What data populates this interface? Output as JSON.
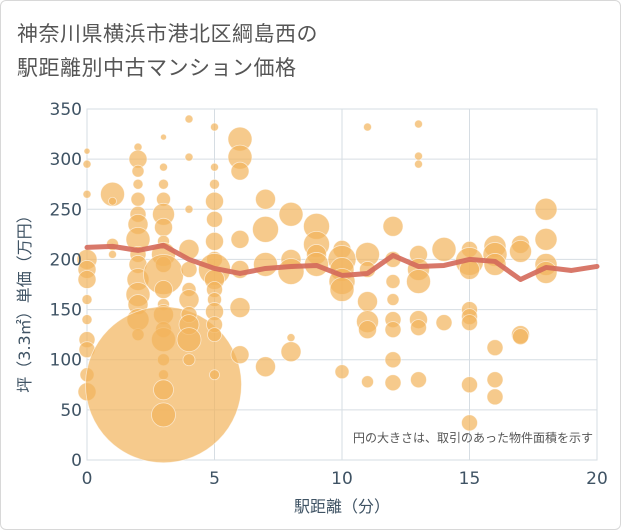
{
  "title_line1": "神奈川県横浜市港北区綱島西の",
  "title_line2": "駅距離別中古マンション価格",
  "chart_data": {
    "type": "scatter",
    "xlabel": "駅距離（分）",
    "ylabel": "坪（3.3㎡）単価（万円）",
    "xlim": [
      0,
      20
    ],
    "ylim": [
      0,
      350
    ],
    "xticks": [
      0,
      5,
      10,
      15,
      20
    ],
    "yticks": [
      0,
      50,
      100,
      150,
      200,
      250,
      300,
      350
    ],
    "grid": true,
    "annotation": "円の大きさは、取引のあった物件面積を示す",
    "bubble_color": "#f2b45b",
    "line_color": "#d4695a",
    "bubbles": [
      {
        "x": 0,
        "y": 308,
        "s": 3
      },
      {
        "x": 0,
        "y": 295,
        "s": 4
      },
      {
        "x": 0,
        "y": 265,
        "s": 4
      },
      {
        "x": 0,
        "y": 200,
        "s": 10
      },
      {
        "x": 0,
        "y": 190,
        "s": 9
      },
      {
        "x": 0,
        "y": 180,
        "s": 9
      },
      {
        "x": 0,
        "y": 160,
        "s": 5
      },
      {
        "x": 0,
        "y": 140,
        "s": 5
      },
      {
        "x": 0,
        "y": 120,
        "s": 8
      },
      {
        "x": 0,
        "y": 110,
        "s": 8
      },
      {
        "x": 0,
        "y": 85,
        "s": 7
      },
      {
        "x": 0,
        "y": 68,
        "s": 9
      },
      {
        "x": 1,
        "y": 265,
        "s": 12
      },
      {
        "x": 1,
        "y": 258,
        "s": 4
      },
      {
        "x": 1,
        "y": 215,
        "s": 6
      },
      {
        "x": 1,
        "y": 205,
        "s": 4
      },
      {
        "x": 2,
        "y": 312,
        "s": 4
      },
      {
        "x": 2,
        "y": 300,
        "s": 9
      },
      {
        "x": 2,
        "y": 288,
        "s": 6
      },
      {
        "x": 2,
        "y": 275,
        "s": 5
      },
      {
        "x": 2,
        "y": 260,
        "s": 7
      },
      {
        "x": 2,
        "y": 245,
        "s": 8
      },
      {
        "x": 2,
        "y": 235,
        "s": 10
      },
      {
        "x": 2,
        "y": 220,
        "s": 12
      },
      {
        "x": 2,
        "y": 205,
        "s": 8
      },
      {
        "x": 2,
        "y": 195,
        "s": 9
      },
      {
        "x": 2,
        "y": 180,
        "s": 11
      },
      {
        "x": 2,
        "y": 165,
        "s": 12
      },
      {
        "x": 2,
        "y": 155,
        "s": 10
      },
      {
        "x": 2,
        "y": 140,
        "s": 11
      },
      {
        "x": 2,
        "y": 125,
        "s": 6
      },
      {
        "x": 3,
        "y": 322,
        "s": 3
      },
      {
        "x": 3,
        "y": 292,
        "s": 4
      },
      {
        "x": 3,
        "y": 275,
        "s": 5
      },
      {
        "x": 3,
        "y": 260,
        "s": 7
      },
      {
        "x": 3,
        "y": 245,
        "s": 11
      },
      {
        "x": 3,
        "y": 232,
        "s": 9
      },
      {
        "x": 3,
        "y": 218,
        "s": 6
      },
      {
        "x": 3,
        "y": 205,
        "s": 12
      },
      {
        "x": 3,
        "y": 195,
        "s": 8
      },
      {
        "x": 3,
        "y": 185,
        "s": 20
      },
      {
        "x": 3,
        "y": 170,
        "s": 9
      },
      {
        "x": 3,
        "y": 155,
        "s": 6
      },
      {
        "x": 3,
        "y": 145,
        "s": 10
      },
      {
        "x": 3,
        "y": 130,
        "s": 8
      },
      {
        "x": 3,
        "y": 120,
        "s": 12
      },
      {
        "x": 3,
        "y": 100,
        "s": 6
      },
      {
        "x": 3,
        "y": 85,
        "s": 5
      },
      {
        "x": 3,
        "y": 75,
        "s": 78
      },
      {
        "x": 3,
        "y": 70,
        "s": 10
      },
      {
        "x": 3,
        "y": 45,
        "s": 12
      },
      {
        "x": 4,
        "y": 340,
        "s": 4
      },
      {
        "x": 4,
        "y": 302,
        "s": 4
      },
      {
        "x": 4,
        "y": 250,
        "s": 4
      },
      {
        "x": 4,
        "y": 210,
        "s": 10
      },
      {
        "x": 4,
        "y": 190,
        "s": 8
      },
      {
        "x": 4,
        "y": 170,
        "s": 7
      },
      {
        "x": 4,
        "y": 160,
        "s": 10
      },
      {
        "x": 4,
        "y": 145,
        "s": 8
      },
      {
        "x": 4,
        "y": 135,
        "s": 10
      },
      {
        "x": 4,
        "y": 120,
        "s": 12
      },
      {
        "x": 4,
        "y": 100,
        "s": 6
      },
      {
        "x": 5,
        "y": 332,
        "s": 4
      },
      {
        "x": 5,
        "y": 292,
        "s": 4
      },
      {
        "x": 5,
        "y": 275,
        "s": 5
      },
      {
        "x": 5,
        "y": 258,
        "s": 9
      },
      {
        "x": 5,
        "y": 240,
        "s": 8
      },
      {
        "x": 5,
        "y": 218,
        "s": 9
      },
      {
        "x": 5,
        "y": 200,
        "s": 8
      },
      {
        "x": 5,
        "y": 190,
        "s": 16
      },
      {
        "x": 5,
        "y": 180,
        "s": 10
      },
      {
        "x": 5,
        "y": 170,
        "s": 8
      },
      {
        "x": 5,
        "y": 160,
        "s": 7
      },
      {
        "x": 5,
        "y": 148,
        "s": 9
      },
      {
        "x": 5,
        "y": 135,
        "s": 8
      },
      {
        "x": 5,
        "y": 125,
        "s": 7
      },
      {
        "x": 5,
        "y": 85,
        "s": 5
      },
      {
        "x": 6,
        "y": 320,
        "s": 12
      },
      {
        "x": 6,
        "y": 302,
        "s": 12
      },
      {
        "x": 6,
        "y": 288,
        "s": 9
      },
      {
        "x": 6,
        "y": 220,
        "s": 9
      },
      {
        "x": 6,
        "y": 190,
        "s": 9
      },
      {
        "x": 6,
        "y": 152,
        "s": 10
      },
      {
        "x": 6,
        "y": 105,
        "s": 9
      },
      {
        "x": 7,
        "y": 260,
        "s": 10
      },
      {
        "x": 7,
        "y": 230,
        "s": 13
      },
      {
        "x": 7,
        "y": 195,
        "s": 12
      },
      {
        "x": 7,
        "y": 93,
        "s": 10
      },
      {
        "x": 8,
        "y": 245,
        "s": 12
      },
      {
        "x": 8,
        "y": 200,
        "s": 10
      },
      {
        "x": 8,
        "y": 188,
        "s": 13
      },
      {
        "x": 8,
        "y": 122,
        "s": 4
      },
      {
        "x": 8,
        "y": 108,
        "s": 10
      },
      {
        "x": 9,
        "y": 233,
        "s": 13
      },
      {
        "x": 9,
        "y": 215,
        "s": 13
      },
      {
        "x": 9,
        "y": 205,
        "s": 10
      },
      {
        "x": 9,
        "y": 195,
        "s": 12
      },
      {
        "x": 10,
        "y": 210,
        "s": 9
      },
      {
        "x": 10,
        "y": 200,
        "s": 14
      },
      {
        "x": 10,
        "y": 190,
        "s": 12
      },
      {
        "x": 10,
        "y": 178,
        "s": 13
      },
      {
        "x": 10,
        "y": 170,
        "s": 12
      },
      {
        "x": 10,
        "y": 88,
        "s": 7
      },
      {
        "x": 11,
        "y": 332,
        "s": 4
      },
      {
        "x": 11,
        "y": 205,
        "s": 12
      },
      {
        "x": 11,
        "y": 190,
        "s": 8
      },
      {
        "x": 11,
        "y": 158,
        "s": 10
      },
      {
        "x": 11,
        "y": 138,
        "s": 11
      },
      {
        "x": 11,
        "y": 130,
        "s": 9
      },
      {
        "x": 11,
        "y": 78,
        "s": 6
      },
      {
        "x": 12,
        "y": 233,
        "s": 10
      },
      {
        "x": 12,
        "y": 200,
        "s": 8
      },
      {
        "x": 12,
        "y": 178,
        "s": 7
      },
      {
        "x": 12,
        "y": 160,
        "s": 6
      },
      {
        "x": 12,
        "y": 140,
        "s": 8
      },
      {
        "x": 12,
        "y": 130,
        "s": 8
      },
      {
        "x": 12,
        "y": 100,
        "s": 8
      },
      {
        "x": 12,
        "y": 77,
        "s": 8
      },
      {
        "x": 13,
        "y": 335,
        "s": 4
      },
      {
        "x": 13,
        "y": 303,
        "s": 4
      },
      {
        "x": 13,
        "y": 295,
        "s": 4
      },
      {
        "x": 13,
        "y": 205,
        "s": 9
      },
      {
        "x": 13,
        "y": 190,
        "s": 11
      },
      {
        "x": 13,
        "y": 178,
        "s": 12
      },
      {
        "x": 13,
        "y": 140,
        "s": 9
      },
      {
        "x": 13,
        "y": 132,
        "s": 8
      },
      {
        "x": 13,
        "y": 80,
        "s": 8
      },
      {
        "x": 14,
        "y": 210,
        "s": 12
      },
      {
        "x": 14,
        "y": 137,
        "s": 8
      },
      {
        "x": 15,
        "y": 210,
        "s": 8
      },
      {
        "x": 15,
        "y": 198,
        "s": 14
      },
      {
        "x": 15,
        "y": 190,
        "s": 10
      },
      {
        "x": 15,
        "y": 150,
        "s": 8
      },
      {
        "x": 15,
        "y": 143,
        "s": 8
      },
      {
        "x": 15,
        "y": 137,
        "s": 8
      },
      {
        "x": 15,
        "y": 75,
        "s": 8
      },
      {
        "x": 15,
        "y": 37,
        "s": 8
      },
      {
        "x": 16,
        "y": 213,
        "s": 11
      },
      {
        "x": 16,
        "y": 205,
        "s": 12
      },
      {
        "x": 16,
        "y": 195,
        "s": 11
      },
      {
        "x": 16,
        "y": 112,
        "s": 8
      },
      {
        "x": 16,
        "y": 80,
        "s": 8
      },
      {
        "x": 16,
        "y": 63,
        "s": 8
      },
      {
        "x": 17,
        "y": 215,
        "s": 9
      },
      {
        "x": 17,
        "y": 208,
        "s": 11
      },
      {
        "x": 17,
        "y": 125,
        "s": 9
      },
      {
        "x": 17,
        "y": 123,
        "s": 8
      },
      {
        "x": 18,
        "y": 250,
        "s": 11
      },
      {
        "x": 18,
        "y": 220,
        "s": 11
      },
      {
        "x": 18,
        "y": 195,
        "s": 11
      },
      {
        "x": 18,
        "y": 187,
        "s": 11
      }
    ],
    "trend_line": {
      "x": [
        0,
        1,
        2,
        3,
        4,
        5,
        6,
        7,
        8,
        9,
        10,
        11,
        12,
        13,
        14,
        15,
        16,
        17,
        18,
        19,
        20
      ],
      "y": [
        212,
        213,
        209,
        214,
        200,
        191,
        186,
        191,
        193,
        194,
        184,
        186,
        204,
        193,
        194,
        200,
        198,
        180,
        192,
        189,
        193
      ]
    }
  }
}
